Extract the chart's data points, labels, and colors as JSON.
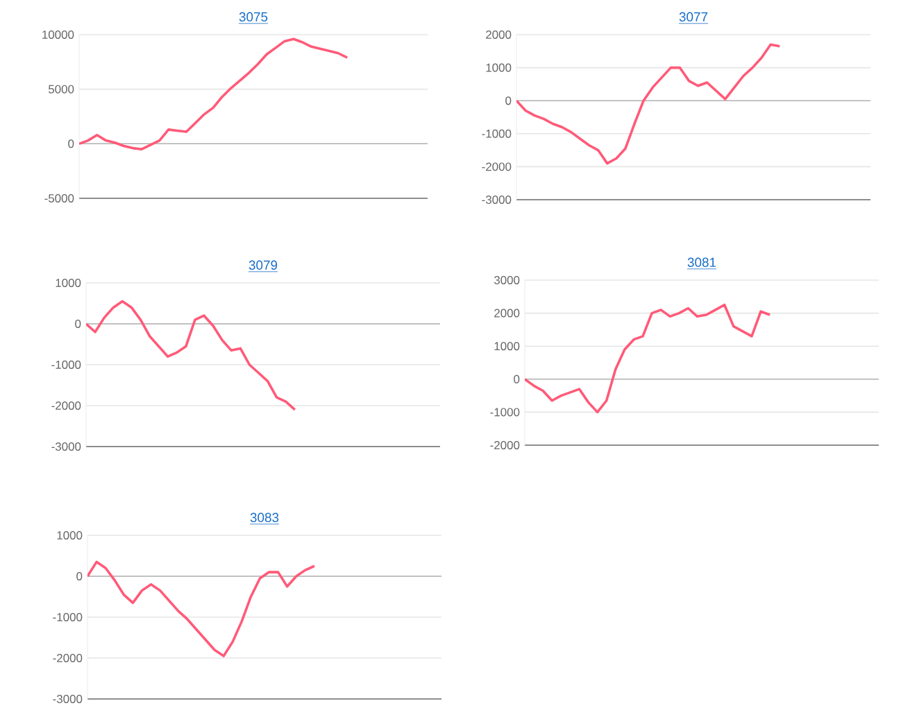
{
  "chart_data": [
    {
      "type": "line",
      "title": "3075",
      "categories": [
        null,
        null,
        null,
        null,
        null,
        null,
        null,
        null,
        null,
        null,
        null,
        null,
        null,
        null,
        null,
        null,
        null,
        null,
        null,
        null,
        null,
        null,
        null,
        null,
        null,
        null,
        null,
        null,
        null,
        null,
        null,
        null,
        null,
        null,
        null,
        null,
        null,
        null,
        null,
        null
      ],
      "values": [
        0,
        300,
        800,
        300,
        100,
        -200,
        -400,
        -500,
        -100,
        300,
        1300,
        1200,
        1100,
        1900,
        2700,
        3300,
        4300,
        5100,
        5800,
        6500,
        7300,
        8200,
        8800,
        9400,
        9600,
        9300,
        8900,
        8700,
        8500,
        8300,
        7900,
        null,
        null,
        null,
        null,
        null,
        null,
        null,
        null,
        null
      ],
      "color": "#ff5a78",
      "ref_lines": [
        {
          "axis": "y",
          "value": 0,
          "color": "#b3b3b3"
        }
      ],
      "ylim": [
        -5000,
        10000
      ],
      "yticks": [
        -5000,
        0,
        5000,
        10000
      ],
      "grid": "y",
      "tick_labels": "y"
    },
    {
      "type": "line",
      "title": "3077",
      "categories": [
        null,
        null,
        null,
        null,
        null,
        null,
        null,
        null,
        null,
        null,
        null,
        null,
        null,
        null,
        null,
        null,
        null,
        null,
        null,
        null,
        null,
        null,
        null,
        null,
        null,
        null,
        null,
        null,
        null,
        null,
        null,
        null,
        null,
        null,
        null,
        null,
        null,
        null,
        null,
        null
      ],
      "values": [
        0,
        -300,
        -450,
        -550,
        -700,
        -800,
        -950,
        -1150,
        -1350,
        -1500,
        -1900,
        -1750,
        -1450,
        -700,
        0,
        400,
        700,
        1000,
        1000,
        600,
        450,
        550,
        300,
        50,
        400,
        750,
        1000,
        1300,
        1700,
        1650,
        null,
        null,
        null,
        null,
        null,
        null,
        null,
        null,
        null,
        null
      ],
      "color": "#ff5a78",
      "ref_lines": [
        {
          "axis": "y",
          "value": 0,
          "color": "#b3b3b3"
        }
      ],
      "ylim": [
        -3000,
        2000
      ],
      "yticks": [
        -3000,
        -2000,
        -1000,
        0,
        1000,
        2000
      ],
      "grid": "y",
      "tick_labels": "y"
    },
    {
      "type": "line",
      "title": "3079",
      "categories": [
        null,
        null,
        null,
        null,
        null,
        null,
        null,
        null,
        null,
        null,
        null,
        null,
        null,
        null,
        null,
        null,
        null,
        null,
        null,
        null,
        null,
        null,
        null,
        null,
        null,
        null,
        null,
        null,
        null,
        null,
        null,
        null,
        null,
        null,
        null,
        null,
        null,
        null,
        null,
        null
      ],
      "values": [
        0,
        -200,
        150,
        400,
        550,
        400,
        100,
        -300,
        -550,
        -800,
        -700,
        -550,
        100,
        200,
        -50,
        -400,
        -650,
        -600,
        -1000,
        -1200,
        -1400,
        -1800,
        -1900,
        -2100,
        null,
        null,
        null,
        null,
        null,
        null,
        null,
        null,
        null,
        null,
        null,
        null,
        null,
        null,
        null,
        null
      ],
      "color": "#ff5a78",
      "ref_lines": [
        {
          "axis": "y",
          "value": 0,
          "color": "#b3b3b3"
        }
      ],
      "ylim": [
        -3000,
        1000
      ],
      "yticks": [
        -3000,
        -2000,
        -1000,
        0,
        1000
      ],
      "grid": "y",
      "tick_labels": "y"
    },
    {
      "type": "line",
      "title": "3081",
      "categories": [
        null,
        null,
        null,
        null,
        null,
        null,
        null,
        null,
        null,
        null,
        null,
        null,
        null,
        null,
        null,
        null,
        null,
        null,
        null,
        null,
        null,
        null,
        null,
        null,
        null,
        null,
        null,
        null,
        null,
        null,
        null,
        null,
        null,
        null,
        null,
        null,
        null,
        null,
        null,
        null
      ],
      "values": [
        0,
        -200,
        -350,
        -650,
        -500,
        -400,
        -300,
        -700,
        -1000,
        -650,
        300,
        900,
        1200,
        1300,
        2000,
        2100,
        1900,
        2000,
        2150,
        1900,
        1950,
        2100,
        2250,
        1600,
        1450,
        1300,
        2050,
        1950,
        null,
        null,
        null,
        null,
        null,
        null,
        null,
        null,
        null,
        null,
        null,
        null
      ],
      "color": "#ff5a78",
      "ref_lines": [
        {
          "axis": "y",
          "value": 0,
          "color": "#b3b3b3"
        }
      ],
      "ylim": [
        -2000,
        3000
      ],
      "yticks": [
        -2000,
        -1000,
        0,
        1000,
        2000,
        3000
      ],
      "grid": "y",
      "tick_labels": "y"
    },
    {
      "type": "line",
      "title": "3083",
      "categories": [
        null,
        null,
        null,
        null,
        null,
        null,
        null,
        null,
        null,
        null,
        null,
        null,
        null,
        null,
        null,
        null,
        null,
        null,
        null,
        null,
        null,
        null,
        null,
        null,
        null,
        null,
        null,
        null,
        null,
        null,
        null,
        null,
        null,
        null,
        null,
        null,
        null,
        null,
        null,
        null
      ],
      "values": [
        0,
        350,
        200,
        -100,
        -450,
        -650,
        -350,
        -200,
        -350,
        -600,
        -850,
        -1050,
        -1300,
        -1550,
        -1800,
        -1950,
        -1600,
        -1100,
        -500,
        -50,
        100,
        100,
        -250,
        0,
        150,
        250,
        null,
        null,
        null,
        null,
        null,
        null,
        null,
        null,
        null,
        null,
        null,
        null,
        null,
        null
      ],
      "color": "#ff5a78",
      "ref_lines": [
        {
          "axis": "y",
          "value": 0,
          "color": "#b3b3b3"
        }
      ],
      "ylim": [
        -3000,
        1000
      ],
      "yticks": [
        -3000,
        -2000,
        -1000,
        0,
        1000
      ],
      "grid": "y",
      "tick_labels": "y"
    }
  ]
}
